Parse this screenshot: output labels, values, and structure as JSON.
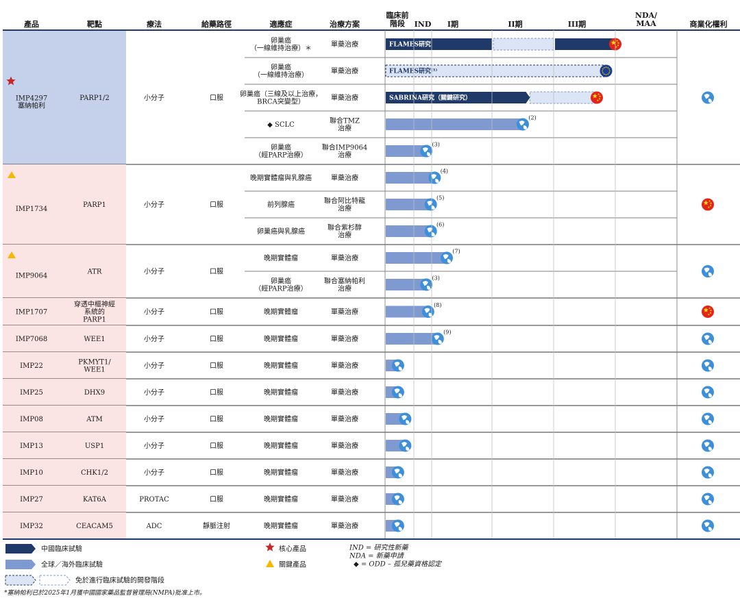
{
  "headers": {
    "product": "產品",
    "target": "靶點",
    "modality": "療法",
    "route": "給藥路徑",
    "indication": "適應症",
    "regimen": "治療方案",
    "preclinical": "臨床前\n階段",
    "ind": "IND",
    "p1": "I期",
    "p2": "II期",
    "p3": "III期",
    "nda": "NDA/\nMAA",
    "rights": "商業化權利"
  },
  "products": [
    {
      "name": "IMP4297\n塞納帕利",
      "target": "PARP1/2",
      "modality": "小分子",
      "route": "口服",
      "mark": "star",
      "bg": "#c5d0eb",
      "rights": "global",
      "rows": [
        {
          "indication": "卵巢癌\n（一線維持治療）＊",
          "regimen": "單藥治療",
          "bar": "cn",
          "end": 5.0,
          "flag": "china",
          "segments": [
            "solid",
            "dashed",
            "solid"
          ],
          "label": "FLAMES研究"
        },
        {
          "indication": "卵巢癌\n（一線維持治療）",
          "regimen": "單藥治療",
          "bar": "dashed",
          "end": 4.85,
          "flag": "eu",
          "label": "FLAMES研究⁽¹⁾"
        },
        {
          "indication": "卵巢癌（三線及以上治療，\nBRCA突變型）",
          "regimen": "單藥治療",
          "bar": "cn",
          "end": 3.55,
          "flag": "china",
          "dashTo": 4.7,
          "label": "SABRINA研究（關鍵研究）"
        },
        {
          "indication": "◆  SCLC",
          "regimen": "聯合TMZ\n治療",
          "bar": "global",
          "end": 3.5,
          "flag": "globe",
          "note": "(2)"
        },
        {
          "indication": "卵巢癌\n（經PARP治療）",
          "regimen": "聯合IMP9064\n治療",
          "bar": "global",
          "end": 1.7,
          "flag": "globe",
          "note": "(3)"
        }
      ]
    },
    {
      "name": "IMP1734",
      "target": "PARP1",
      "modality": "小分子",
      "route": "口服",
      "mark": "triangle",
      "bg": "#fbe4e4",
      "rights": "china",
      "rows": [
        {
          "indication": "晚期實體瘤與乳腺癌",
          "regimen": "單藥治療",
          "bar": "global",
          "end": 2.05,
          "flag": "globe",
          "note": "(4)"
        },
        {
          "indication": "前列腺癌",
          "regimen": "聯合阿比特龍\n治療",
          "bar": "global",
          "end": 1.95,
          "flag": "globe",
          "note": "(5)"
        },
        {
          "indication": "卵巢癌與乳腺癌",
          "regimen": "聯合紫杉醇\n治療",
          "bar": "global",
          "end": 1.95,
          "flag": "globe",
          "note": "(6)"
        }
      ]
    },
    {
      "name": "IMP9064",
      "target": "ATR",
      "modality": "小分子",
      "route": "口服",
      "mark": "triangle",
      "bg": "#fbe4e4",
      "rights": "global",
      "rows": [
        {
          "indication": "晚期實體瘤",
          "regimen": "單藥治療",
          "bar": "global",
          "end": 2.25,
          "flag": "globe",
          "note": "(7)"
        },
        {
          "indication": "卵巢癌\n（經PARP治療）",
          "regimen": "聯合塞納帕利\n治療",
          "bar": "global",
          "end": 1.7,
          "flag": "globe",
          "note": "(3)"
        }
      ]
    },
    {
      "name": "IMP1707",
      "target": "穿透中樞神經\n系統的\nPARP1",
      "modality": "小分子",
      "route": "口服",
      "mark": "",
      "bg": "#fbe4e4",
      "rights": "china",
      "rows": [
        {
          "indication": "晚期實體瘤",
          "regimen": "單藥治療",
          "bar": "global",
          "end": 1.8,
          "flag": "globe",
          "note": "(8)"
        }
      ]
    },
    {
      "name": "IMP7068",
      "target": "WEE1",
      "modality": "小分子",
      "route": "口服",
      "mark": "",
      "bg": "#fbe4e4",
      "rights": "global",
      "rows": [
        {
          "indication": "晚期實體瘤",
          "regimen": "單藥治療",
          "bar": "global",
          "end": 2.1,
          "flag": "globe",
          "note": "(9)"
        }
      ]
    },
    {
      "name": "IMP22",
      "target": "PKMYT1/\nWEE1",
      "modality": "小分子",
      "route": "口服",
      "mark": "",
      "bg": "#fbe4e4",
      "rights": "global",
      "rows": [
        {
          "indication": "晚期實體瘤",
          "regimen": "單藥治療",
          "bar": "global",
          "end": 0.45,
          "flag": "globe"
        }
      ]
    },
    {
      "name": "IMP25",
      "target": "DHX9",
      "modality": "小分子",
      "route": "口服",
      "mark": "",
      "bg": "#fbe4e4",
      "rights": "global",
      "rows": [
        {
          "indication": "晚期實體瘤",
          "regimen": "單藥治療",
          "bar": "global",
          "end": 0.45,
          "flag": "globe"
        }
      ]
    },
    {
      "name": "IMP08",
      "target": "ATM",
      "modality": "小分子",
      "route": "口服",
      "mark": "",
      "bg": "#fbe4e4",
      "rights": "global",
      "rows": [
        {
          "indication": "晚期實體瘤",
          "regimen": "單藥治療",
          "bar": "global",
          "end": 0.7,
          "flag": "globe"
        }
      ]
    },
    {
      "name": "IMP13",
      "target": "USP1",
      "modality": "小分子",
      "route": "口服",
      "mark": "",
      "bg": "#fbe4e4",
      "rights": "global",
      "rows": [
        {
          "indication": "晚期實體瘤",
          "regimen": "單藥治療",
          "bar": "global",
          "end": 0.7,
          "flag": "globe"
        }
      ]
    },
    {
      "name": "IMP10",
      "target": "CHK1/2",
      "modality": "小分子",
      "route": "口服",
      "mark": "",
      "bg": "#fbe4e4",
      "rights": "global",
      "rows": [
        {
          "indication": "晚期實體瘤",
          "regimen": "單藥治療",
          "bar": "global",
          "end": 0.45,
          "flag": "globe"
        }
      ]
    },
    {
      "name": "IMP27",
      "target": "KAT6A",
      "modality": "PROTAC",
      "route": "口服",
      "mark": "",
      "bg": "#fbe4e4",
      "rights": "global",
      "rows": [
        {
          "indication": "晚期實體瘤",
          "regimen": "單藥治療",
          "bar": "global",
          "end": 0.45,
          "flag": "globe"
        }
      ]
    },
    {
      "name": "IMP32",
      "target": "CEACAM5",
      "modality": "ADC",
      "route": "靜脈注射",
      "mark": "",
      "bg": "#fbe4e4",
      "rights": "global",
      "rows": [
        {
          "indication": "晚期實體瘤",
          "regimen": "單藥治療",
          "bar": "global",
          "end": 0.45,
          "flag": "globe"
        }
      ]
    }
  ],
  "legend": {
    "cn": "中國臨床試驗",
    "global": "全球／海外臨床試驗",
    "exempt": "免於進行臨床試驗的開發階段",
    "core": "核心產品",
    "key": "關鍵產品",
    "ind": "IND = 研究性新藥",
    "nda": "NDA = 新藥申請",
    "odd": "◆  = ODD – 孤兒藥資格認定"
  },
  "footnote": "*塞納帕利已於2025年1月獲中國國家藥品監督管理局(NMPA)批准上市。",
  "colors": {
    "navy": "#1f3a68",
    "blue": "#7f9ad0",
    "lightblue": "#dbe5f5",
    "star": "#c62828",
    "triangle": "#f5b800"
  }
}
